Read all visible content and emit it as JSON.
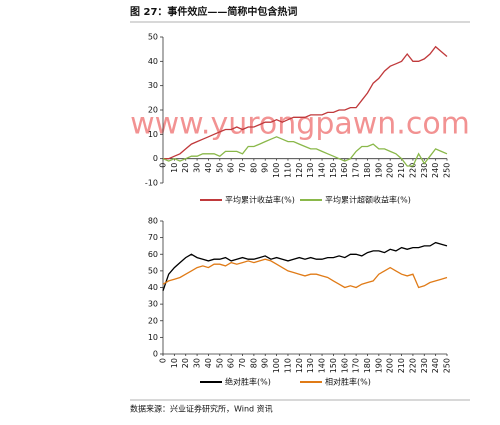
{
  "title": "图 27：事件效应——简称中包含热词",
  "watermark": "www.yurongpawn.com",
  "source": "数据来源：兴业证券研究所，Wind 资讯",
  "chart_data": [
    {
      "type": "line",
      "x": [
        0,
        5,
        10,
        15,
        20,
        25,
        30,
        35,
        40,
        45,
        50,
        55,
        60,
        65,
        70,
        75,
        80,
        85,
        90,
        95,
        100,
        105,
        110,
        115,
        120,
        125,
        130,
        135,
        140,
        145,
        150,
        155,
        160,
        165,
        170,
        175,
        180,
        185,
        190,
        195,
        200,
        205,
        210,
        215,
        220,
        225,
        230,
        235,
        240,
        245,
        250
      ],
      "xlim": [
        0,
        250
      ],
      "xticks": [
        0,
        10,
        20,
        30,
        40,
        50,
        60,
        70,
        80,
        90,
        100,
        110,
        120,
        130,
        140,
        150,
        160,
        170,
        180,
        190,
        200,
        210,
        220,
        230,
        240,
        250
      ],
      "ylim": [
        -10,
        50
      ],
      "yticks": [
        -10,
        0,
        10,
        20,
        30,
        40,
        50
      ],
      "series": [
        {
          "name": "平均累计收益率(%)",
          "color": "#c0393b",
          "values": [
            0,
            0,
            1,
            2,
            4,
            6,
            7,
            8,
            9,
            10,
            11,
            12,
            12,
            13,
            12,
            13,
            13,
            14,
            15,
            15,
            16,
            15,
            16,
            17,
            17,
            17,
            18,
            18,
            18,
            19,
            19,
            20,
            20,
            21,
            21,
            24,
            27,
            31,
            33,
            36,
            38,
            39,
            40,
            43,
            40,
            40,
            41,
            43,
            46,
            44,
            42
          ]
        },
        {
          "name": "平均累计超额收益率(%)",
          "color": "#8ab84a",
          "values": [
            0,
            -1,
            0,
            -1,
            0,
            1,
            1,
            2,
            2,
            2,
            1,
            3,
            3,
            3,
            2,
            5,
            5,
            6,
            7,
            8,
            9,
            8,
            7,
            7,
            6,
            5,
            4,
            4,
            3,
            2,
            1,
            0,
            -1,
            0,
            3,
            5,
            5,
            6,
            4,
            4,
            3,
            2,
            0,
            -3,
            -3,
            2,
            -2,
            1,
            4,
            3,
            2
          ]
        }
      ]
    },
    {
      "type": "line",
      "x": [
        0,
        5,
        10,
        15,
        20,
        25,
        30,
        35,
        40,
        45,
        50,
        55,
        60,
        65,
        70,
        75,
        80,
        85,
        90,
        95,
        100,
        105,
        110,
        115,
        120,
        125,
        130,
        135,
        140,
        145,
        150,
        155,
        160,
        165,
        170,
        175,
        180,
        185,
        190,
        195,
        200,
        205,
        210,
        215,
        220,
        225,
        230,
        235,
        240,
        245,
        250
      ],
      "xlim": [
        0,
        250
      ],
      "xticks": [
        0,
        10,
        20,
        30,
        40,
        50,
        60,
        70,
        80,
        90,
        100,
        110,
        120,
        130,
        140,
        150,
        160,
        170,
        180,
        190,
        200,
        210,
        220,
        230,
        240,
        250
      ],
      "ylim": [
        0,
        80
      ],
      "yticks": [
        0,
        10,
        20,
        30,
        40,
        50,
        60,
        70,
        80
      ],
      "series": [
        {
          "name": "绝对胜率(%)",
          "color": "#000000",
          "values": [
            38,
            48,
            52,
            55,
            58,
            60,
            58,
            57,
            56,
            57,
            57,
            58,
            56,
            57,
            58,
            57,
            57,
            58,
            59,
            57,
            58,
            57,
            56,
            57,
            58,
            57,
            58,
            57,
            57,
            58,
            58,
            59,
            58,
            60,
            60,
            59,
            61,
            62,
            62,
            61,
            63,
            62,
            64,
            63,
            64,
            64,
            65,
            65,
            67,
            66,
            65
          ]
        },
        {
          "name": "相对胜率(%)",
          "color": "#e07b17",
          "values": [
            42,
            44,
            45,
            46,
            48,
            50,
            52,
            53,
            52,
            54,
            54,
            53,
            55,
            54,
            55,
            56,
            55,
            56,
            57,
            56,
            54,
            52,
            50,
            49,
            48,
            47,
            48,
            48,
            47,
            46,
            44,
            42,
            40,
            41,
            40,
            42,
            43,
            44,
            48,
            50,
            52,
            50,
            48,
            47,
            48,
            40,
            41,
            43,
            44,
            45,
            46
          ]
        }
      ]
    }
  ]
}
